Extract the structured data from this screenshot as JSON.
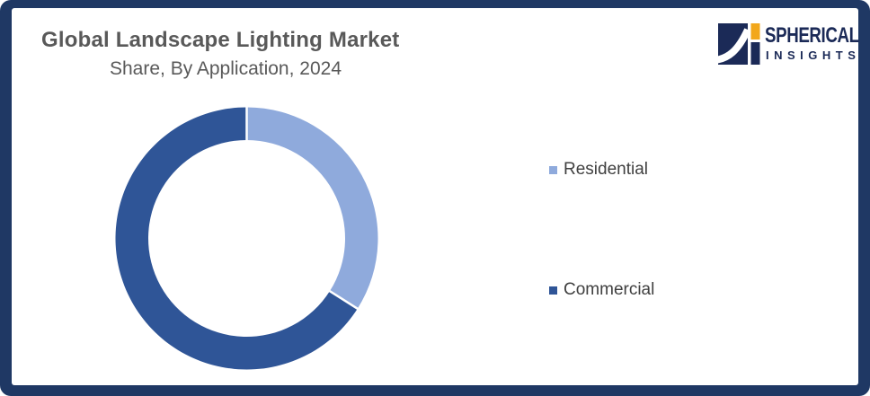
{
  "header": {
    "title": "Global Landscape Lighting Market",
    "subtitle": "Share, By Application, 2024"
  },
  "logo": {
    "brand_name": "SPHERICAL",
    "brand_tagline": "INSIGHTS",
    "navy": "#1B2A57",
    "orange": "#F2A71B"
  },
  "frame": {
    "border_color": "#1F3864",
    "background_color": "#FFFFFF"
  },
  "chart_data": {
    "type": "pie",
    "subtype": "donut",
    "title": "Global Landscape Lighting Market Share, By Application, 2024",
    "categories": [
      "Residential",
      "Commercial"
    ],
    "values": [
      34,
      66
    ],
    "unit": "%",
    "colors": [
      "#8FAADC",
      "#2F5597"
    ],
    "start_angle_deg": 0,
    "direction": "clockwise",
    "donut_hole_ratio": 0.75,
    "separator_color": "#FFFFFF",
    "legend_position": "right",
    "data_labels": false
  }
}
